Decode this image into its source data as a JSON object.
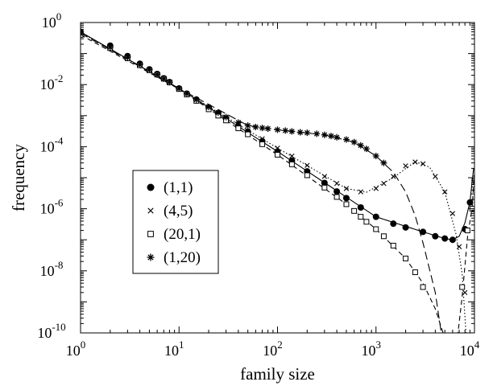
{
  "chart_data": {
    "type": "scatter",
    "xlabel": "family size",
    "ylabel": "frequency",
    "xscale": "log",
    "yscale": "log",
    "xlim": [
      1,
      10000
    ],
    "ylim": [
      1e-10,
      1
    ],
    "grid": false,
    "legend_position": "center-left",
    "x_tick_labels": [
      {
        "base": "10",
        "exp": "0",
        "value": 1
      },
      {
        "base": "10",
        "exp": "1",
        "value": 10
      },
      {
        "base": "10",
        "exp": "2",
        "value": 100
      },
      {
        "base": "10",
        "exp": "3",
        "value": 1000
      },
      {
        "base": "10",
        "exp": "4",
        "value": 10000
      }
    ],
    "y_tick_labels": [
      {
        "base": "10",
        "exp": "0",
        "value": 1
      },
      {
        "base": "10",
        "exp": "-2",
        "value": 0.01
      },
      {
        "base": "10",
        "exp": "-4",
        "value": 0.0001
      },
      {
        "base": "10",
        "exp": "-6",
        "value": 1e-06
      },
      {
        "base": "10",
        "exp": "-8",
        "value": 1e-08
      },
      {
        "base": "10",
        "exp": "-10",
        "value": 1e-10
      }
    ],
    "series": [
      {
        "name": "(1,1)",
        "marker": "filled-circle",
        "line_style": "solid",
        "points": [
          [
            1,
            0.5
          ],
          [
            2,
            0.18
          ],
          [
            3,
            0.083
          ],
          [
            4,
            0.047
          ],
          [
            5,
            0.031
          ],
          [
            6,
            0.022
          ],
          [
            7,
            0.016
          ],
          [
            8,
            0.012
          ],
          [
            10,
            0.0075
          ],
          [
            12,
            0.0051
          ],
          [
            15,
            0.0033
          ],
          [
            20,
            0.0018
          ],
          [
            25,
            0.0012
          ],
          [
            30,
            0.0008
          ],
          [
            40,
            0.00045
          ],
          [
            50,
            0.0003
          ],
          [
            70,
            0.00015
          ],
          [
            100,
            7e-05
          ],
          [
            140,
            3.5e-05
          ],
          [
            200,
            1.6e-05
          ],
          [
            300,
            6.8e-06
          ],
          [
            400,
            3.6e-06
          ],
          [
            500,
            2.2e-06
          ],
          [
            700,
            1.1e-06
          ],
          [
            1000,
            5.5e-07
          ],
          [
            1500,
            3.3e-07
          ],
          [
            2000,
            2.5e-07
          ],
          [
            3000,
            1.8e-07
          ],
          [
            4000,
            1.3e-07
          ],
          [
            5000,
            1.1e-07
          ],
          [
            6000,
            1e-07
          ],
          [
            8000,
            2.2e-07
          ],
          [
            9000,
            1.6e-06
          ]
        ],
        "curve": [
          [
            1,
            0.5
          ],
          [
            10,
            0.0075
          ],
          [
            100,
            7e-05
          ],
          [
            1000,
            5.5e-07
          ],
          [
            3000,
            1.8e-07
          ],
          [
            5000,
            1.1e-07
          ],
          [
            6000,
            1e-07
          ],
          [
            7000,
            1.3e-07
          ],
          [
            8000,
            3.5e-07
          ],
          [
            9000,
            1.7e-06
          ],
          [
            9800,
            2e-05
          ]
        ]
      },
      {
        "name": "(4,5)",
        "marker": "cross",
        "line_style": "dotted",
        "points": [
          [
            1,
            0.48
          ],
          [
            2,
            0.17
          ],
          [
            3,
            0.08
          ],
          [
            4,
            0.046
          ],
          [
            5,
            0.03
          ],
          [
            6,
            0.021
          ],
          [
            7,
            0.0155
          ],
          [
            8,
            0.0118
          ],
          [
            10,
            0.0074
          ],
          [
            12,
            0.005
          ],
          [
            15,
            0.0032
          ],
          [
            20,
            0.0018
          ],
          [
            25,
            0.0012
          ],
          [
            30,
            0.00083
          ],
          [
            40,
            0.00048
          ],
          [
            50,
            0.00033
          ],
          [
            70,
            0.00018
          ],
          [
            100,
            9e-05
          ],
          [
            140,
            5e-05
          ],
          [
            200,
            2.5e-05
          ],
          [
            300,
            1.1e-05
          ],
          [
            400,
            6.5e-06
          ],
          [
            500,
            4.5e-06
          ],
          [
            700,
            3.5e-06
          ],
          [
            1000,
            4.5e-06
          ],
          [
            1200,
            6.5e-06
          ],
          [
            1500,
            1.1e-05
          ],
          [
            2000,
            2.4e-05
          ],
          [
            2500,
            3.2e-05
          ],
          [
            3000,
            2.8e-05
          ],
          [
            4000,
            1.1e-05
          ],
          [
            5000,
            3.5e-06
          ],
          [
            6000,
            7e-07
          ],
          [
            7000,
            6e-08
          ],
          [
            8000,
            2e-09
          ]
        ],
        "curve": [
          [
            1,
            0.48
          ],
          [
            10,
            0.0074
          ],
          [
            100,
            9e-05
          ],
          [
            500,
            4.5e-06
          ],
          [
            800,
            3.4e-06
          ],
          [
            1500,
            1e-05
          ],
          [
            2500,
            3.3e-05
          ],
          [
            3500,
            2.2e-05
          ],
          [
            5000,
            3.5e-06
          ],
          [
            6500,
            1.5e-07
          ],
          [
            7500,
            8e-09
          ],
          [
            8200,
            1e-10
          ]
        ]
      },
      {
        "name": "(20,1)",
        "marker": "open-square",
        "line_style": "dashed",
        "points": [
          [
            1,
            0.4
          ],
          [
            2,
            0.15
          ],
          [
            3,
            0.07
          ],
          [
            4,
            0.042
          ],
          [
            5,
            0.029
          ],
          [
            6,
            0.021
          ],
          [
            7,
            0.0155
          ],
          [
            8,
            0.0118
          ],
          [
            10,
            0.0072
          ],
          [
            12,
            0.0048
          ],
          [
            15,
            0.003
          ],
          [
            20,
            0.0016
          ],
          [
            25,
            0.001
          ],
          [
            30,
            0.0007
          ],
          [
            40,
            0.00039
          ],
          [
            50,
            0.00025
          ],
          [
            70,
            0.00012
          ],
          [
            100,
            5.5e-05
          ],
          [
            140,
            2.7e-05
          ],
          [
            200,
            1.2e-05
          ],
          [
            300,
            4.8e-06
          ],
          [
            400,
            2.4e-06
          ],
          [
            500,
            1.4e-06
          ],
          [
            600,
            8.5e-07
          ],
          [
            700,
            5.5e-07
          ],
          [
            800,
            3.8e-07
          ],
          [
            1000,
            2.2e-07
          ],
          [
            1200,
            1.3e-07
          ],
          [
            1500,
            6.5e-08
          ],
          [
            2000,
            2.5e-08
          ],
          [
            2500,
            9e-09
          ],
          [
            3000,
            3e-09
          ],
          [
            7500,
            3e-09
          ],
          [
            8500,
            2e-07
          ],
          [
            9500,
            1e-06
          ]
        ],
        "curve": [
          [
            1,
            0.4
          ],
          [
            10,
            0.0072
          ],
          [
            100,
            5.5e-05
          ],
          [
            500,
            1.4e-06
          ],
          [
            1000,
            2.2e-07
          ],
          [
            2000,
            2.5e-08
          ],
          [
            3000,
            4e-09
          ],
          [
            4000,
            6e-10
          ],
          [
            4800,
            1e-10
          ],
          [
            6800,
            1e-10
          ],
          [
            7500,
            1.5e-09
          ],
          [
            8500,
            1.2e-07
          ],
          [
            9500,
            1.2e-06
          ],
          [
            9900,
            1.2e-05
          ]
        ]
      },
      {
        "name": "(1,20)",
        "marker": "asterisk",
        "line_style": "long-dashed",
        "points": [
          [
            1,
            0.45
          ],
          [
            2,
            0.16
          ],
          [
            3,
            0.075
          ],
          [
            4,
            0.044
          ],
          [
            5,
            0.03
          ],
          [
            6,
            0.021
          ],
          [
            7,
            0.0155
          ],
          [
            8,
            0.012
          ],
          [
            10,
            0.0075
          ],
          [
            12,
            0.0051
          ],
          [
            15,
            0.0033
          ],
          [
            20,
            0.0019
          ],
          [
            25,
            0.00125
          ],
          [
            30,
            0.0009
          ],
          [
            40,
            0.0006
          ],
          [
            50,
            0.00048
          ],
          [
            60,
            0.00043
          ],
          [
            70,
            0.0004
          ],
          [
            80,
            0.00038
          ],
          [
            100,
            0.00035
          ],
          [
            120,
            0.00033
          ],
          [
            140,
            0.00031
          ],
          [
            170,
            0.00029
          ],
          [
            200,
            0.00028
          ],
          [
            250,
            0.00026
          ],
          [
            300,
            0.00024
          ],
          [
            350,
            0.00022
          ],
          [
            400,
            0.0002
          ],
          [
            500,
            0.00017
          ],
          [
            600,
            0.00014
          ],
          [
            700,
            0.00011
          ],
          [
            800,
            8.5e-05
          ],
          [
            1000,
            5e-05
          ],
          [
            1200,
            3e-05
          ]
        ],
        "curve": [
          [
            1,
            0.45
          ],
          [
            10,
            0.0075
          ],
          [
            50,
            0.00048
          ],
          [
            100,
            0.00035
          ],
          [
            300,
            0.00024
          ],
          [
            600,
            0.00014
          ],
          [
            1000,
            5e-05
          ],
          [
            1500,
            1.5e-05
          ],
          [
            2000,
            3.5e-06
          ],
          [
            2500,
            6e-07
          ],
          [
            3000,
            8e-08
          ],
          [
            4000,
            2e-09
          ],
          [
            4600,
            1e-10
          ]
        ]
      }
    ]
  }
}
